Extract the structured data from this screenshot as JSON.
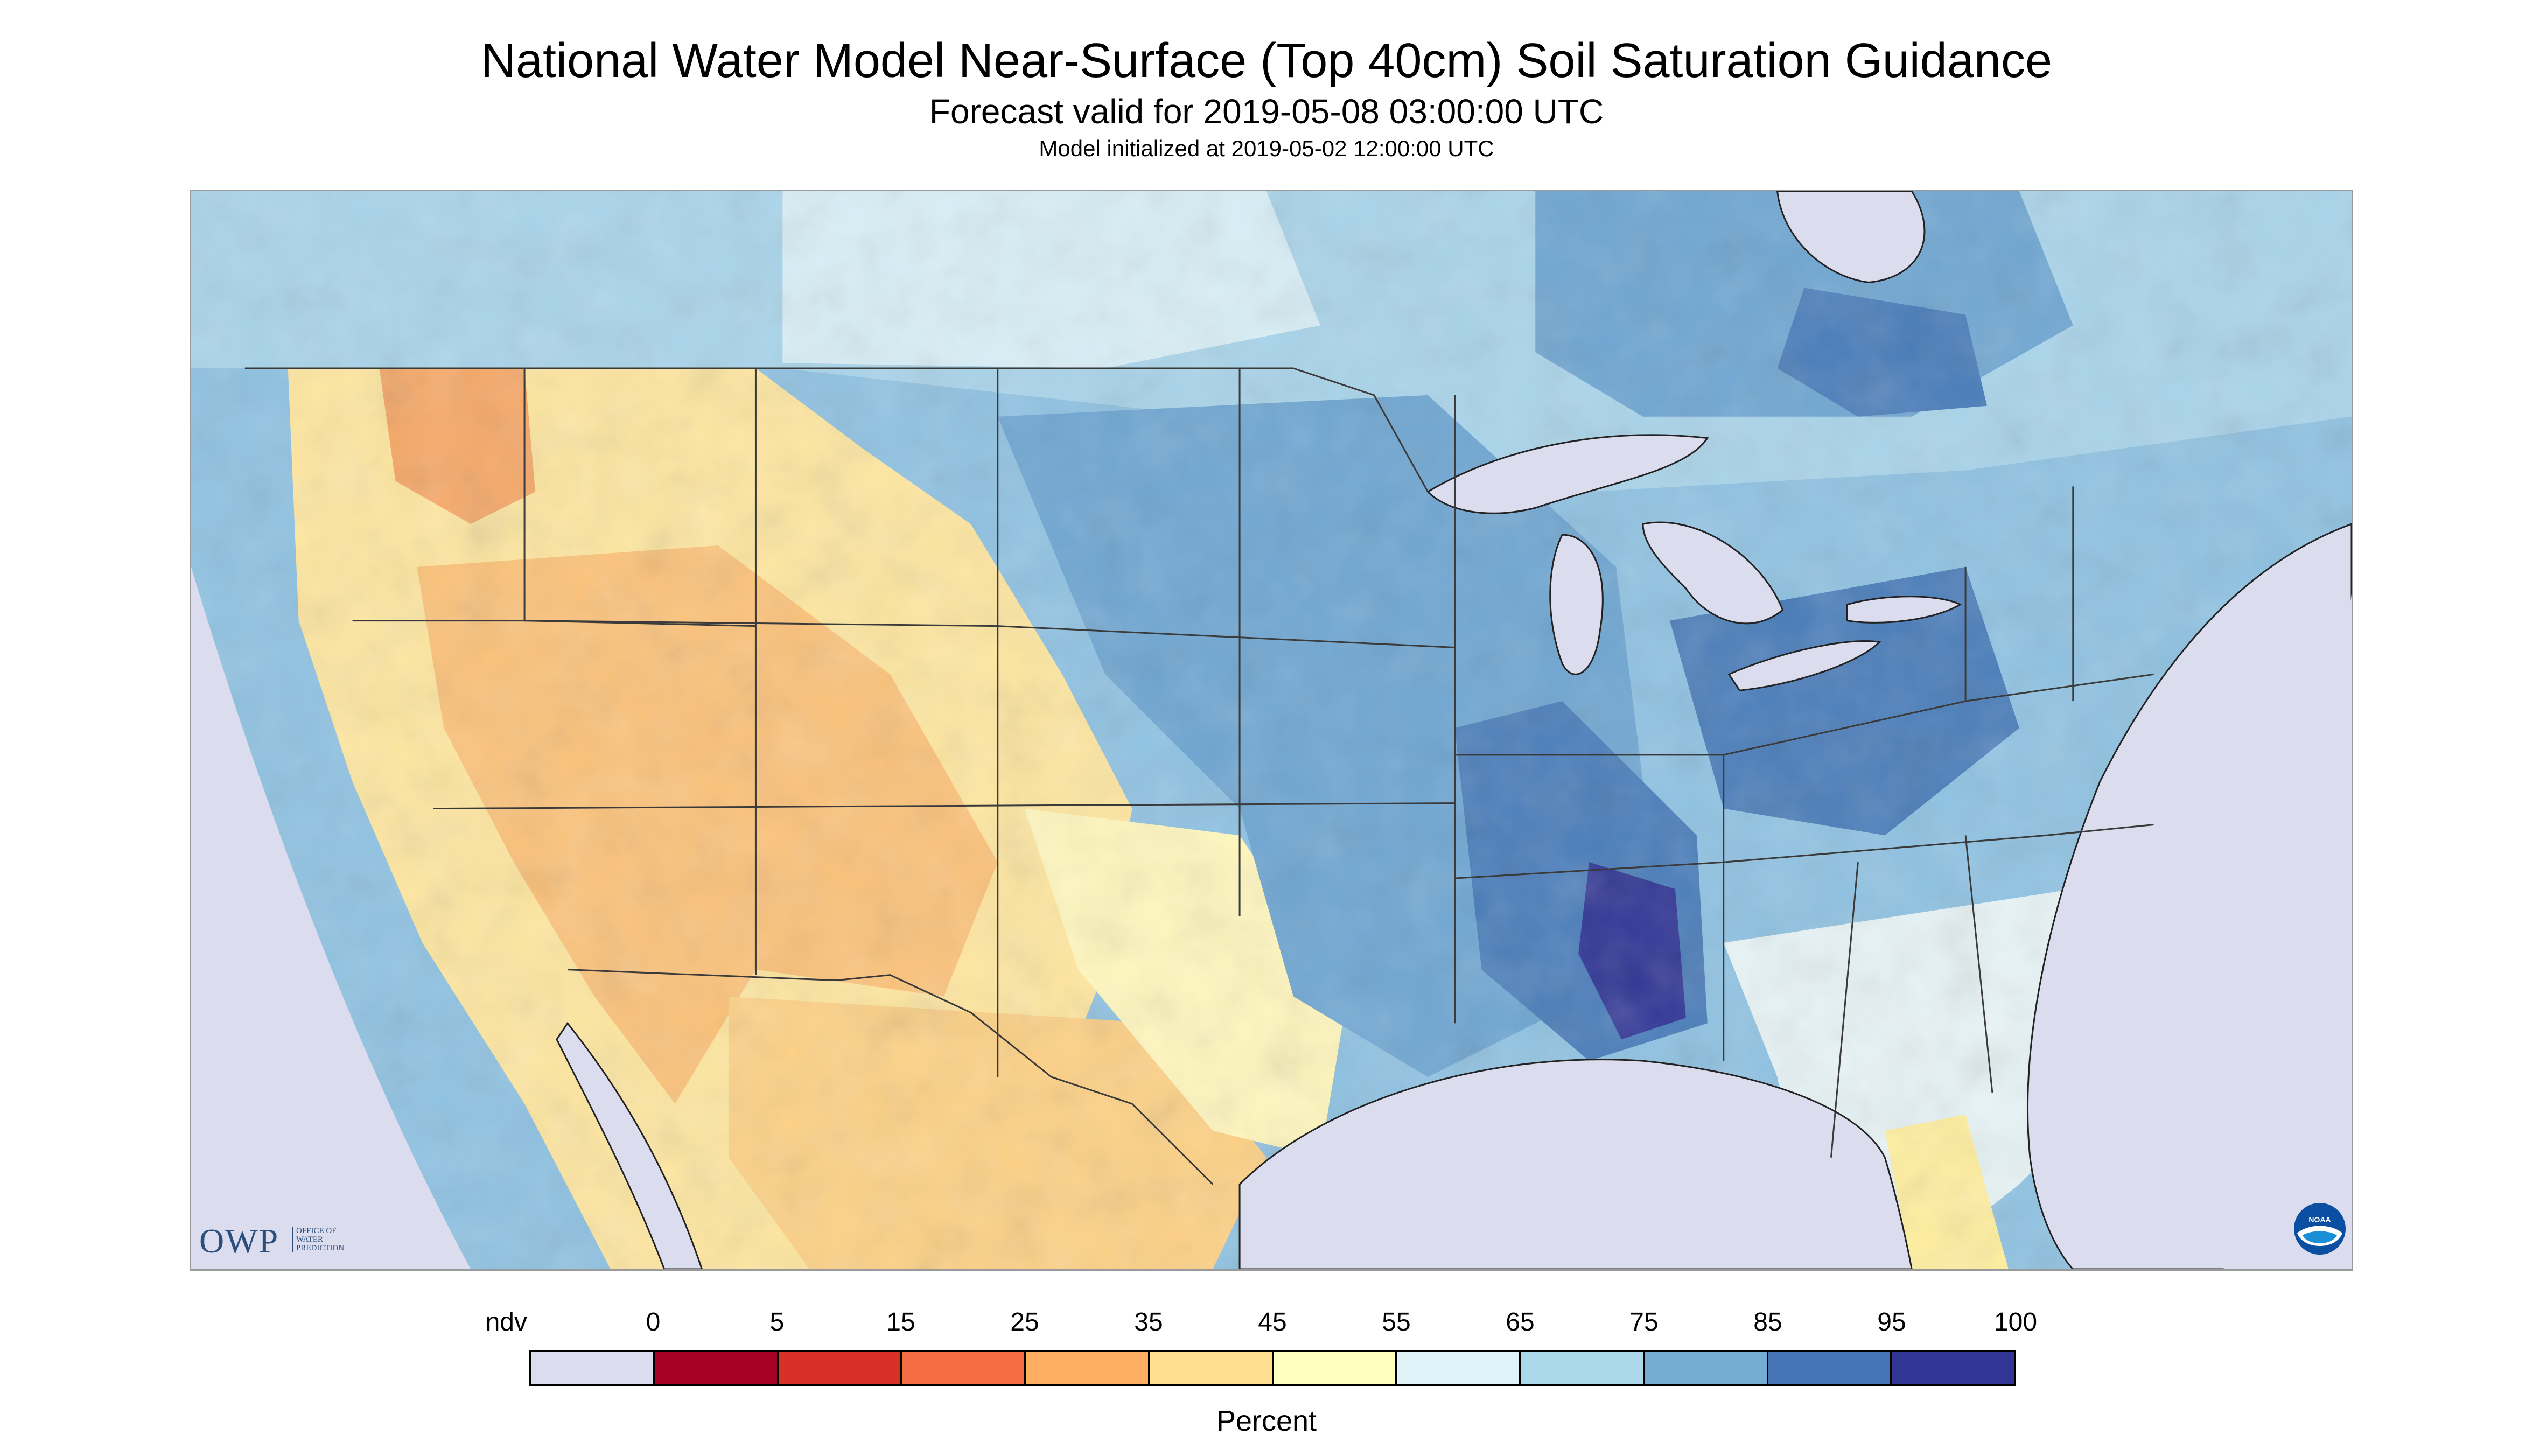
{
  "header": {
    "title": "National Water Model Near-Surface (Top 40cm) Soil Saturation Guidance",
    "subtitle": "Forecast valid for 2019-05-08 03:00:00 UTC",
    "init_line": "Model initialized at 2019-05-02 12:00:00 UTC"
  },
  "logos": {
    "owp_text": "OWP",
    "owp_subtext": "OFFICE OF\nWATER\nPREDICTION",
    "noaa_text": "NOAA"
  },
  "legend": {
    "labels": [
      "ndv",
      "0",
      "5",
      "15",
      "25",
      "35",
      "45",
      "55",
      "65",
      "75",
      "85",
      "95",
      "100"
    ],
    "colors": [
      "#dcdcef",
      "#a50026",
      "#d73027",
      "#f46d43",
      "#fdae61",
      "#fee090",
      "#ffffbf",
      "#e0f3f8",
      "#abd9e9",
      "#74add1",
      "#4575b4",
      "#313695"
    ],
    "unit": "Percent"
  },
  "map": {
    "nodata_color": "#dcdcef",
    "water_color": "#dcdcef",
    "boundary_color": "#3a3a3a"
  }
}
